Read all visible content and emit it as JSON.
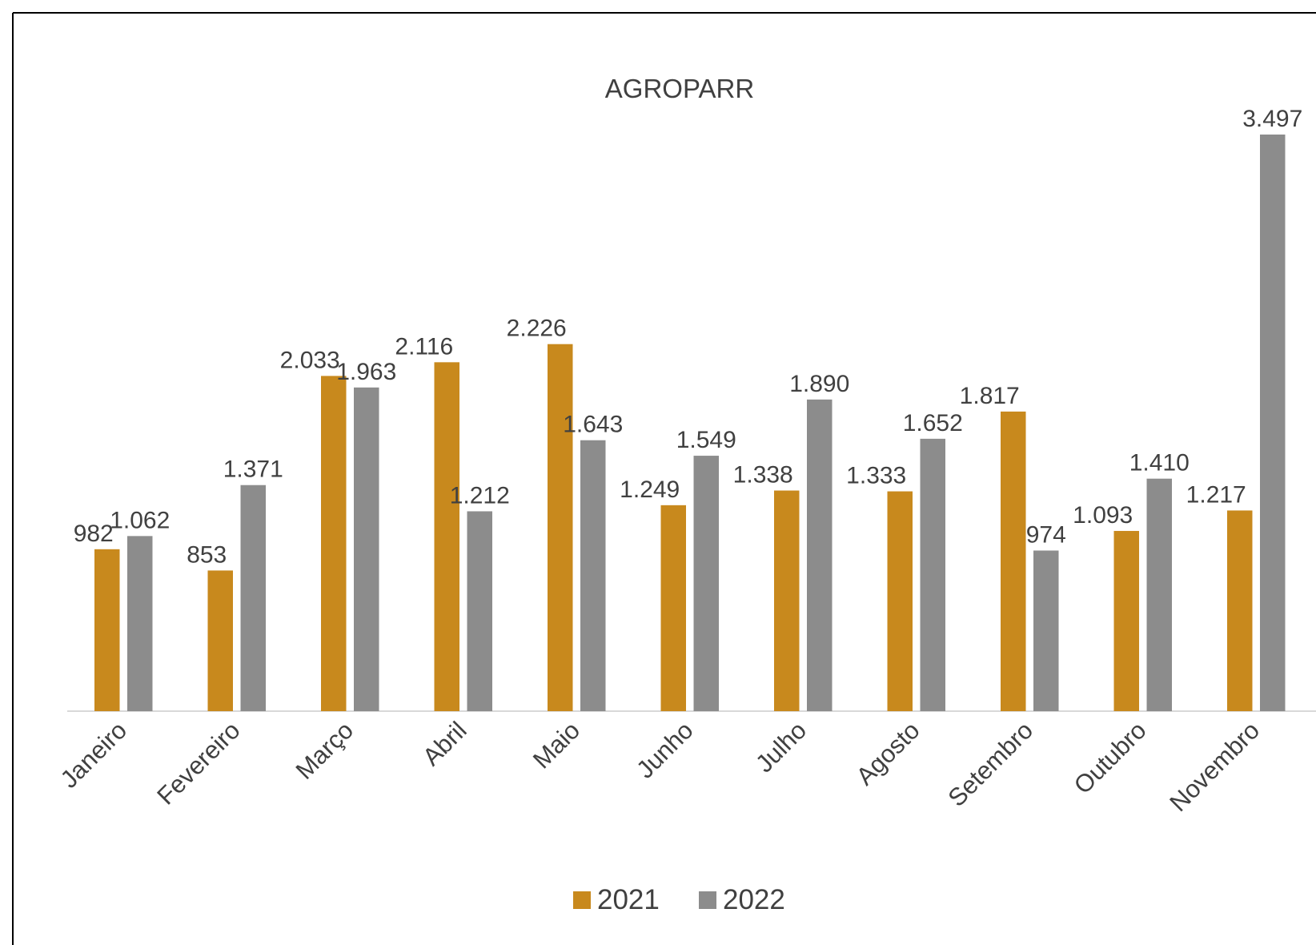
{
  "chart_data": {
    "type": "bar",
    "title": "AGROPARR",
    "categories": [
      "Janeiro",
      "Fevereiro",
      "Março",
      "Abril",
      "Maio",
      "Junho",
      "Julho",
      "Agosto",
      "Setembro",
      "Outubro",
      "Novembro"
    ],
    "series": [
      {
        "name": "2021",
        "color": "#c8891d",
        "values": [
          982,
          853,
          2033,
          2116,
          2226,
          1249,
          1338,
          1333,
          1817,
          1093,
          1217
        ],
        "value_labels": [
          "982",
          "853",
          "2.033",
          "2.116",
          "2.226",
          "1.249",
          "1.338",
          "1.333",
          "1.817",
          "1.093",
          "1.217"
        ]
      },
      {
        "name": "2022",
        "color": "#8c8c8c",
        "values": [
          1062,
          1371,
          1963,
          1212,
          1643,
          1549,
          1890,
          1652,
          974,
          1410,
          3497
        ],
        "value_labels": [
          "1.062",
          "1.371",
          "1.963",
          "1.212",
          "1.643",
          "1.549",
          "1.890",
          "1.652",
          "974",
          "1.410",
          "3.497"
        ]
      }
    ],
    "legend": "bottom"
  }
}
